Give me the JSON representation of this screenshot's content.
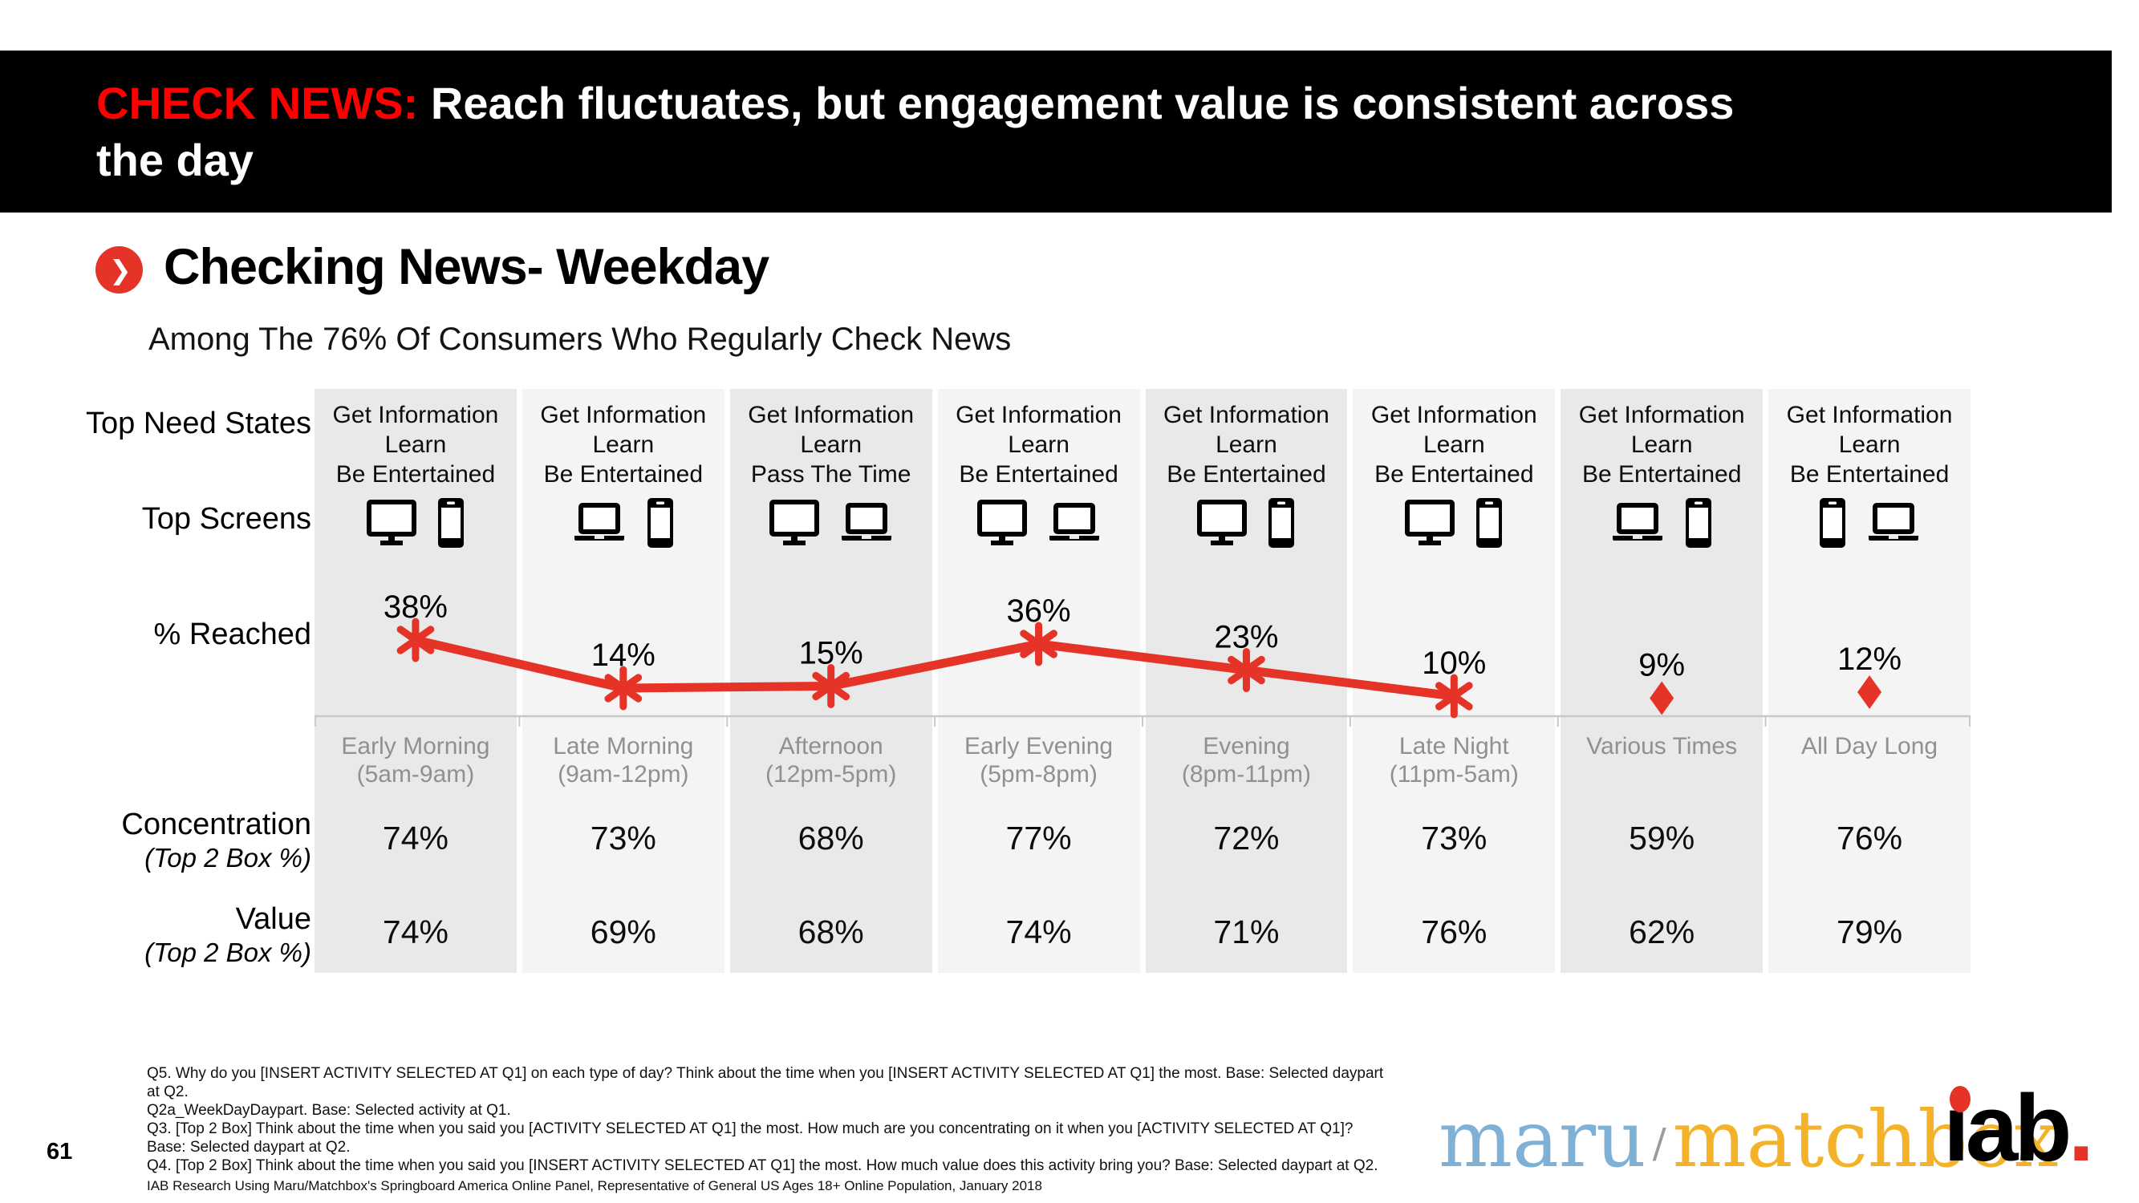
{
  "header": {
    "highlight": "CHECK NEWS:",
    "line1_rest": " Reach fluctuates, but engagement value is consistent across",
    "line2": "the day"
  },
  "section": {
    "title": "Checking News- Weekday",
    "subtitle": "Among The 76% Of Consumers Who Regularly Check News",
    "bullet_chevron": "❯"
  },
  "row_labels": {
    "need_states": "Top Need States",
    "screens": "Top Screens",
    "reached": "% Reached",
    "concentration": "Concentration",
    "concentration_sub": "(Top 2 Box %)",
    "value": "Value",
    "value_sub": "(Top 2 Box %)"
  },
  "chart_data": {
    "type": "line",
    "title": "Checking News- Weekday",
    "categories": [
      {
        "name": "Early Morning",
        "time": "(5am-9am)"
      },
      {
        "name": "Late Morning",
        "time": "(9am-12pm)"
      },
      {
        "name": "Afternoon",
        "time": "(12pm-5pm)"
      },
      {
        "name": "Early Evening",
        "time": "(5pm-8pm)"
      },
      {
        "name": "Evening",
        "time": "(8pm-11pm)"
      },
      {
        "name": "Late Night",
        "time": "(11pm-5am)"
      },
      {
        "name": "Various Times",
        "time": ""
      },
      {
        "name": "All Day Long",
        "time": ""
      }
    ],
    "need_states": [
      [
        "Get Information",
        "Learn",
        "Be Entertained"
      ],
      [
        "Get Information",
        "Learn",
        "Be Entertained"
      ],
      [
        "Get Information",
        "Learn",
        "Pass The Time"
      ],
      [
        "Get Information",
        "Learn",
        "Be Entertained"
      ],
      [
        "Get Information",
        "Learn",
        "Be Entertained"
      ],
      [
        "Get Information",
        "Learn",
        "Be Entertained"
      ],
      [
        "Get Information",
        "Learn",
        "Be Entertained"
      ],
      [
        "Get Information",
        "Learn",
        "Be Entertained"
      ]
    ],
    "screens": [
      [
        "desktop",
        "phone"
      ],
      [
        "laptop",
        "phone"
      ],
      [
        "desktop",
        "laptop"
      ],
      [
        "desktop",
        "laptop"
      ],
      [
        "desktop",
        "phone"
      ],
      [
        "desktop",
        "phone"
      ],
      [
        "laptop",
        "phone"
      ],
      [
        "phone",
        "laptop"
      ]
    ],
    "series": [
      {
        "name": "% Reached",
        "values": [
          38,
          14,
          15,
          36,
          23,
          10,
          9,
          12
        ],
        "markers": [
          "asterisk",
          "asterisk",
          "asterisk",
          "asterisk",
          "asterisk",
          "asterisk",
          "diamond",
          "diamond"
        ]
      },
      {
        "name": "Concentration (Top 2 Box %)",
        "values": [
          74,
          73,
          68,
          77,
          72,
          73,
          59,
          76
        ]
      },
      {
        "name": "Value (Top 2 Box %)",
        "values": [
          74,
          69,
          68,
          74,
          71,
          76,
          62,
          79
        ]
      }
    ],
    "ylim": [
      0,
      45
    ],
    "grid": false,
    "legend_position": "none",
    "colors": {
      "accent_red": "#e53427",
      "band_dark": "#e9e9e9",
      "band_light": "#f4f4f4",
      "daypart_gray": "#8e9093",
      "axis_gray": "#c9c9c9"
    }
  },
  "footer": {
    "page_number": "61",
    "notes": [
      "Q5. Why do you [INSERT ACTIVITY SELECTED AT Q1] on each type of day? Think about the time when you [INSERT ACTIVITY SELECTED AT Q1] the most. Base: Selected daypart",
      "at Q2.",
      "Q2a_WeekDayDaypart. Base: Selected activity at Q1.",
      "Q3. [Top 2 Box] Think about the time when you said you [ACTIVITY SELECTED AT Q1] the most.  How much are you concentrating on it when you [ACTIVITY SELECTED AT Q1]?",
      "Base: Selected daypart at Q2.",
      "Q4. [Top 2 Box] Think about the time when you said you [INSERT ACTIVITY SELECTED AT Q1] the most.  How much value does this activity bring you? Base: Selected daypart at Q2."
    ],
    "source": "IAB Research Using Maru/Matchbox's Springboard America Online Panel, Representative of General US Ages 18+ Online Population, January 2018",
    "logos": {
      "maru": "maru",
      "slash": "/",
      "matchbox": "matchbox",
      "iab_text": "ıab",
      "iab_period": ".",
      "maru_blue": "#7fb1d7",
      "matchbox_yellow": "#f3b229"
    }
  }
}
